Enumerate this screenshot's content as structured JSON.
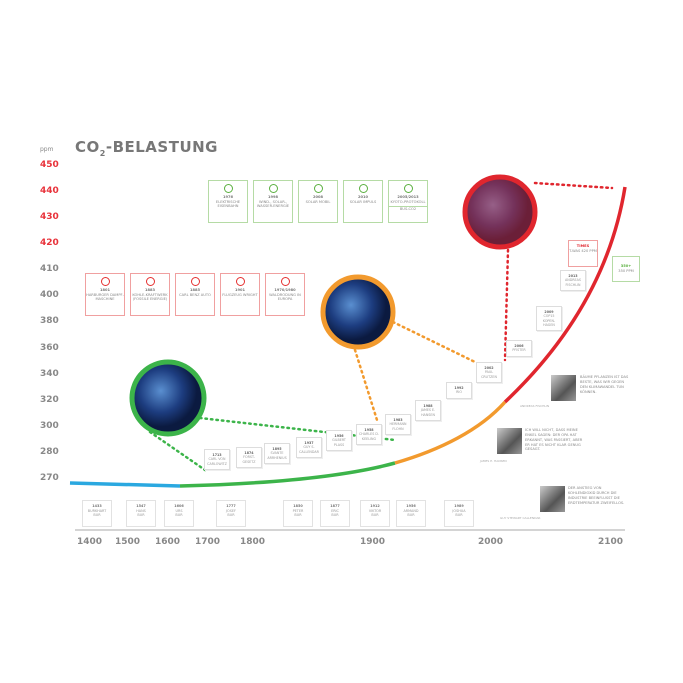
{
  "title": {
    "prefix": "CO",
    "sub": "2",
    "suffix": "-BELASTUNG"
  },
  "y_axis": {
    "unit": "ppm",
    "ticks": [
      "450",
      "440",
      "430",
      "420",
      "410",
      "400",
      "380",
      "360",
      "340",
      "320",
      "300",
      "280",
      "270"
    ],
    "highlight_color": "#e8323a",
    "tick_color": "#888888"
  },
  "colors": {
    "pre_industrial": "#2aa8e0",
    "industrial": "#3cb44a",
    "modern": "#f29a2e",
    "current": "#e0262e"
  },
  "red_boxes": [
    {
      "year": "1801",
      "text": "HARBURGER DAMPF-MASCHINE"
    },
    {
      "year": "1883",
      "text": "KOHLE-KRAFTWERK (FOSSILE ENERGIE)"
    },
    {
      "year": "1885",
      "text": "CARL BENZ AUTO"
    },
    {
      "year": "1901",
      "text": "FLUGZEUG WRIGHT"
    },
    {
      "year": "1970/1980",
      "text": "WALDRODUNG IN EUROPA"
    }
  ],
  "green_boxes": [
    {
      "year": "1976",
      "text": "ELEKTRISCHE EISENBAHN"
    },
    {
      "year": "1998",
      "text": "WIND-, SOLAR-, WASSER-ENERGIE"
    },
    {
      "year": "2008",
      "text": "SOLAR MOBIL"
    },
    {
      "year": "2010",
      "text": "SOLAR IMPULS"
    },
    {
      "year": "2005/2013",
      "text": "KYOTO-PROTOKOLL",
      "extra": "BUS-CO2"
    }
  ],
  "curve_notes": [
    {
      "year": "1713",
      "text": "CARL VON CARLOWITZ"
    },
    {
      "year": "1874",
      "text": "FORST-GESETZ"
    },
    {
      "year": "1895",
      "text": "SVANTE ARRHENIUS"
    },
    {
      "year": "1937",
      "text": "GUY S. CALLENDAR"
    },
    {
      "year": "1956",
      "text": "GILBERT PLASS"
    },
    {
      "year": "1958",
      "text": "CHARLES D. KEELING"
    },
    {
      "year": "1983",
      "text": "HERMANN FLOHN"
    },
    {
      "year": "1988",
      "text": "JAMES E. HANSEN"
    },
    {
      "year": "1992",
      "text": "RIO"
    },
    {
      "year": "2002",
      "text": "PAUL CRUTZEN"
    },
    {
      "year": "2006",
      "text": "PFISTER"
    },
    {
      "year": "2009",
      "text": "COP15 KOPEN-HAGEN"
    },
    {
      "year": "2013",
      "text": "ANDREAS FISCHLIN"
    }
  ],
  "status_red": {
    "year": "TIMES",
    "text": "T-WAS 420 PPM"
  },
  "status_green": {
    "year": "350+",
    "text": "350 PPM"
  },
  "bottom_people": [
    {
      "year": "1433",
      "name": "BURKHART",
      "last": "BUR"
    },
    {
      "year": "1547",
      "name": "HANS",
      "last": "BUR"
    },
    {
      "year": "1606",
      "name": "URS",
      "last": "BUR"
    },
    {
      "year": "1777",
      "name": "JOSEF",
      "last": "BUR"
    },
    {
      "year": "1850",
      "name": "PETER",
      "last": "BUR"
    },
    {
      "year": "1877",
      "name": "ERIC",
      "last": "BUR"
    },
    {
      "year": "1912",
      "name": "VIKTOR",
      "last": "BUR"
    },
    {
      "year": "1956",
      "name": "ARMAND",
      "last": "BUR"
    },
    {
      "year": "1989",
      "name": "JOSHUA",
      "last": "BUR"
    }
  ],
  "x_axis": [
    "1400",
    "1500",
    "1600",
    "1700",
    "1800",
    "1900",
    "2000",
    "2100"
  ],
  "quotes": [
    {
      "text": "BÄUME PFLANZEN IST DAS BESTE, WAS WIR GEGEN DEN KLIMAWANDEL TUN KÖNNEN.",
      "author": "ANDREAS FISCHLIN"
    },
    {
      "text": "ICH WILL NICHT, DASS MEINE ENKEL SAGEN: DER OPA HAT ERKANNT, WAS PASSIERT, ABER ER HAT ES NICHT KLAR GENUG GESAGT.",
      "author": "JAMES E. HANSEN"
    },
    {
      "text": "DER ANSTIEG VON KOHLENDIOXID DURCH DIE INDUSTRIE BEEINFLUSST DIE ERDTEMPERATUR ZWEIFELLOS.",
      "author": "GUY STEWART CALLENDAR"
    }
  ]
}
